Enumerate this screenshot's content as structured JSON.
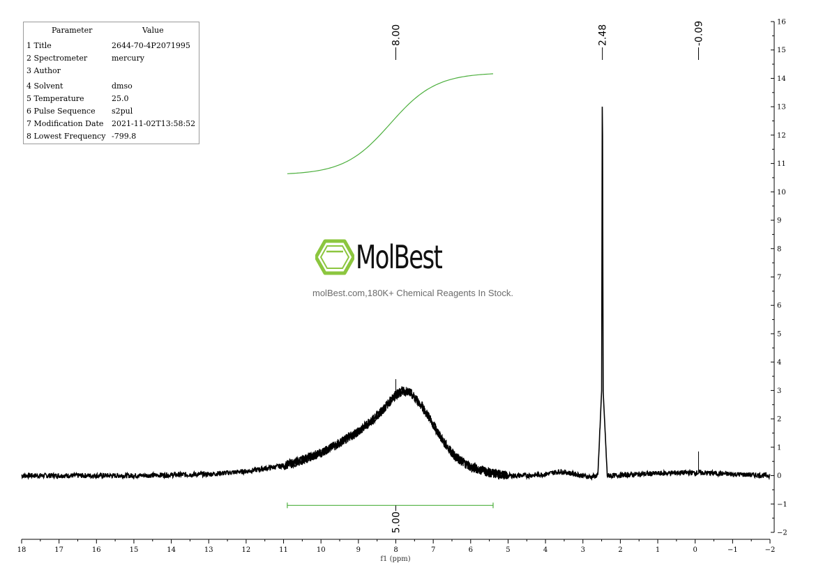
{
  "params": {
    "header": [
      "Parameter",
      "Value"
    ],
    "rows": [
      [
        "1 Title",
        "2644-70-4P2071995"
      ],
      [
        "2 Spectrometer",
        "mercury"
      ],
      [
        "3 Author",
        ""
      ],
      [
        "4 Solvent",
        "dmso"
      ],
      [
        "5 Temperature",
        "25.0"
      ],
      [
        "6 Pulse Sequence",
        "s2pul"
      ],
      [
        "7 Modification Date",
        "2021-11-02T13:58:52"
      ],
      [
        "8 Lowest Frequency",
        "-799.8"
      ]
    ]
  },
  "watermark": {
    "brand": "MolBest",
    "tagline": "molBest.com,180K+ Chemical Reagents In Stock."
  },
  "chart_data": {
    "type": "line",
    "xlabel": "f1 (ppm)",
    "xlim": [
      18,
      -2
    ],
    "ylim": [
      -2,
      16
    ],
    "x_ticks": [
      18,
      17,
      16,
      15,
      14,
      13,
      12,
      11,
      10,
      9,
      8,
      7,
      6,
      5,
      4,
      3,
      2,
      1,
      0,
      -1,
      -2
    ],
    "y_ticks": [
      -2,
      -1,
      0,
      1,
      2,
      3,
      4,
      5,
      6,
      7,
      8,
      9,
      10,
      11,
      12,
      13,
      14,
      15,
      16
    ],
    "peaks": [
      {
        "label": "8.00",
        "ppm": 8.0
      },
      {
        "label": "2.48",
        "ppm": 2.48
      },
      {
        "label": "-0.09",
        "ppm": -0.09
      }
    ],
    "integrals": [
      {
        "label": "5.00",
        "from": 10.9,
        "to": 5.4,
        "curve_start": 10.6,
        "curve_end": 14.2
      }
    ],
    "series": [
      {
        "x": [
          18,
          15,
          13,
          12,
          11,
          10.5,
          10,
          9.5,
          9,
          8.5,
          8.2,
          8.0,
          7.8,
          7.6,
          7.3,
          7.0,
          6.7,
          6.4,
          6.0,
          5.5,
          5.0,
          4.5,
          4.0,
          3.6,
          3.2,
          2.8,
          2.6,
          2.5,
          2.48,
          2.46,
          2.35,
          2.2,
          1.5,
          0.5,
          0.0,
          -0.09,
          -0.2,
          -1.0,
          -2.0
        ],
        "y": [
          0.0,
          0.0,
          0.05,
          0.15,
          0.35,
          0.55,
          0.8,
          1.15,
          1.55,
          2.1,
          2.55,
          2.85,
          3.0,
          2.9,
          2.45,
          1.8,
          1.15,
          0.65,
          0.3,
          0.1,
          0.0,
          0.0,
          0.05,
          0.15,
          0.05,
          -0.05,
          0.0,
          3.0,
          15.0,
          3.0,
          0.0,
          0.0,
          0.05,
          0.1,
          0.1,
          0.1,
          0.1,
          0.05,
          0.0
        ]
      }
    ],
    "sharp_lines": [
      {
        "ppm": 8.0,
        "y": 3.4
      },
      {
        "ppm": -0.09,
        "y": 0.85
      }
    ]
  }
}
